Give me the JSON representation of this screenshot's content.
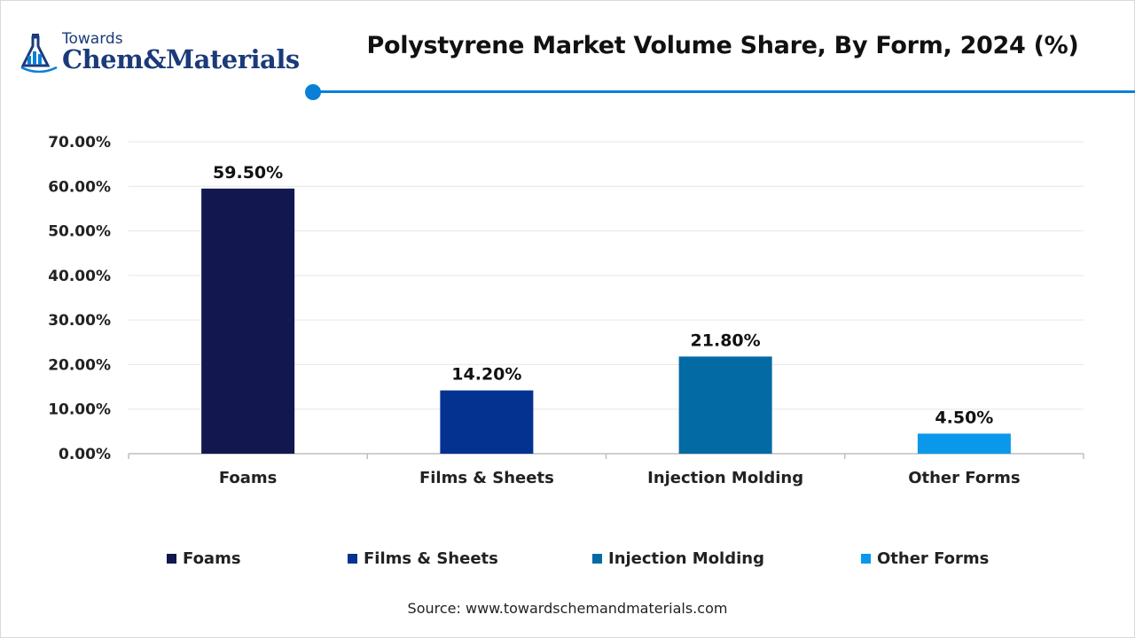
{
  "brand": {
    "small": "Towards",
    "big_left": "Chem",
    "big_amp": "&",
    "big_right": "Materials",
    "colors": {
      "primary": "#1b3a7a",
      "accent": "#0a7fd6"
    }
  },
  "source": "Source: www.towardschemandmaterials.com",
  "chart_data": {
    "type": "bar",
    "title": "Polystyrene Market Volume Share, By Form, 2024 (%)",
    "categories": [
      "Foams",
      "Films & Sheets",
      "Injection Molding",
      "Other Forms"
    ],
    "values": [
      59.5,
      14.2,
      21.8,
      4.5
    ],
    "data_labels": [
      "59.50%",
      "14.20%",
      "21.80%",
      "4.50%"
    ],
    "colors": [
      "#12174f",
      "#043291",
      "#046aa3",
      "#0a98ea"
    ],
    "ylim": [
      0,
      70
    ],
    "yticks": [
      0,
      10,
      20,
      30,
      40,
      50,
      60,
      70
    ],
    "ytick_labels": [
      "0.00%",
      "10.00%",
      "20.00%",
      "30.00%",
      "40.00%",
      "50.00%",
      "60.00%",
      "70.00%"
    ],
    "grid": true,
    "legend_position": "bottom",
    "xlabel": "",
    "ylabel": ""
  }
}
